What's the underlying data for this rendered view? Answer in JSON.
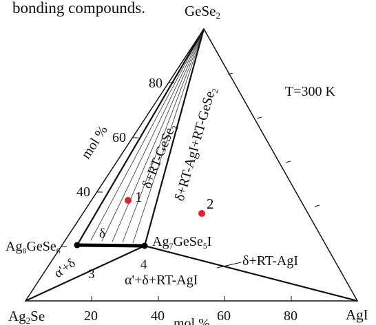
{
  "header_text": "bonding compounds.",
  "vertices": {
    "top": {
      "main": "GeSe",
      "sub": "2"
    },
    "left": {
      "main": "Ag",
      "sub": "2",
      "rest": "Se"
    },
    "right": "AgI"
  },
  "compounds": {
    "argyrodite": {
      "a": "Ag",
      "s1": "8",
      "b": "GeSe",
      "s2": "6"
    },
    "iodide": {
      "a": "Ag",
      "s1": "7",
      "b": "GeSe",
      "s2": "5",
      "c": "I"
    }
  },
  "temperature_label": "T=300 K",
  "axes": {
    "left_label": "mol %",
    "left_ticks": [
      "80",
      "60",
      "40"
    ],
    "bottom_label": "mol %",
    "bottom_ticks": [
      "20",
      "40",
      "60",
      "80"
    ]
  },
  "phase_fields": {
    "delta_rt_gese2": {
      "main": "δ+RT-GeSe",
      "sub": "2"
    },
    "delta_rt_agi_rt_gese2": {
      "main": "δ+RT-AgI+RT-GeSe",
      "sub": "2"
    },
    "delta_rt_agi": "δ+RT-AgI",
    "alpha_delta_rt_agi": "α'+δ+RT-AgI",
    "alpha_delta": "α'+δ",
    "delta": "δ"
  },
  "region_numbers": [
    "3",
    "4"
  ],
  "points": [
    {
      "label": "1",
      "color": "#e0202a"
    },
    {
      "label": "2",
      "color": "#e0202a"
    }
  ]
}
